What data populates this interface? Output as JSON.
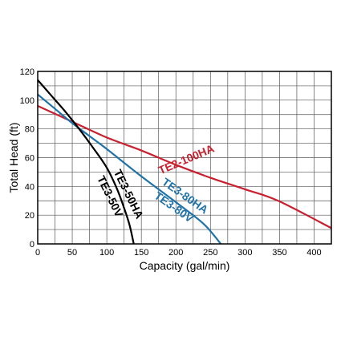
{
  "chart_data": {
    "type": "line",
    "title": "",
    "xlabel": "Capacity  (gal/min)",
    "ylabel": "Total  Head  (ft)",
    "xlim": [
      0,
      425
    ],
    "ylim": [
      0,
      120
    ],
    "xticks": [
      0,
      50,
      100,
      150,
      200,
      250,
      300,
      350,
      400
    ],
    "yticks": [
      0,
      20,
      40,
      60,
      80,
      100,
      120
    ],
    "grid": true,
    "legend": "none",
    "series": [
      {
        "name": "TE2-100HA",
        "color": "#c8202e",
        "points": [
          [
            0,
            96
          ],
          [
            50,
            85
          ],
          [
            100,
            74
          ],
          [
            150,
            65
          ],
          [
            200,
            55
          ],
          [
            250,
            46
          ],
          [
            300,
            38
          ],
          [
            348,
            30
          ],
          [
            425,
            11
          ]
        ]
      },
      {
        "name": "TE3-80HA / TE3-80V",
        "color": "#1f73a8",
        "points": [
          [
            0,
            104
          ],
          [
            25,
            94
          ],
          [
            50,
            84
          ],
          [
            75,
            75
          ],
          [
            100,
            66
          ],
          [
            150,
            47
          ],
          [
            200,
            29
          ],
          [
            240,
            14
          ],
          [
            265,
            0
          ]
        ]
      },
      {
        "name": "TE3-50HA / TE3-50V",
        "color": "#000000",
        "points": [
          [
            0,
            114
          ],
          [
            20,
            103
          ],
          [
            40,
            92
          ],
          [
            60,
            80
          ],
          [
            80,
            67
          ],
          [
            100,
            53
          ],
          [
            115,
            38
          ],
          [
            125,
            25
          ],
          [
            133,
            13
          ],
          [
            139,
            0
          ]
        ]
      }
    ],
    "annotations": [
      {
        "text": "TE2-100HA",
        "series": 0
      },
      {
        "text": "TE3-80HA",
        "series": 1
      },
      {
        "text": "TE3-80V",
        "series": 1
      },
      {
        "text": "TE3-50HA",
        "series": 2
      },
      {
        "text": "TE3-50V",
        "series": 2
      }
    ]
  }
}
